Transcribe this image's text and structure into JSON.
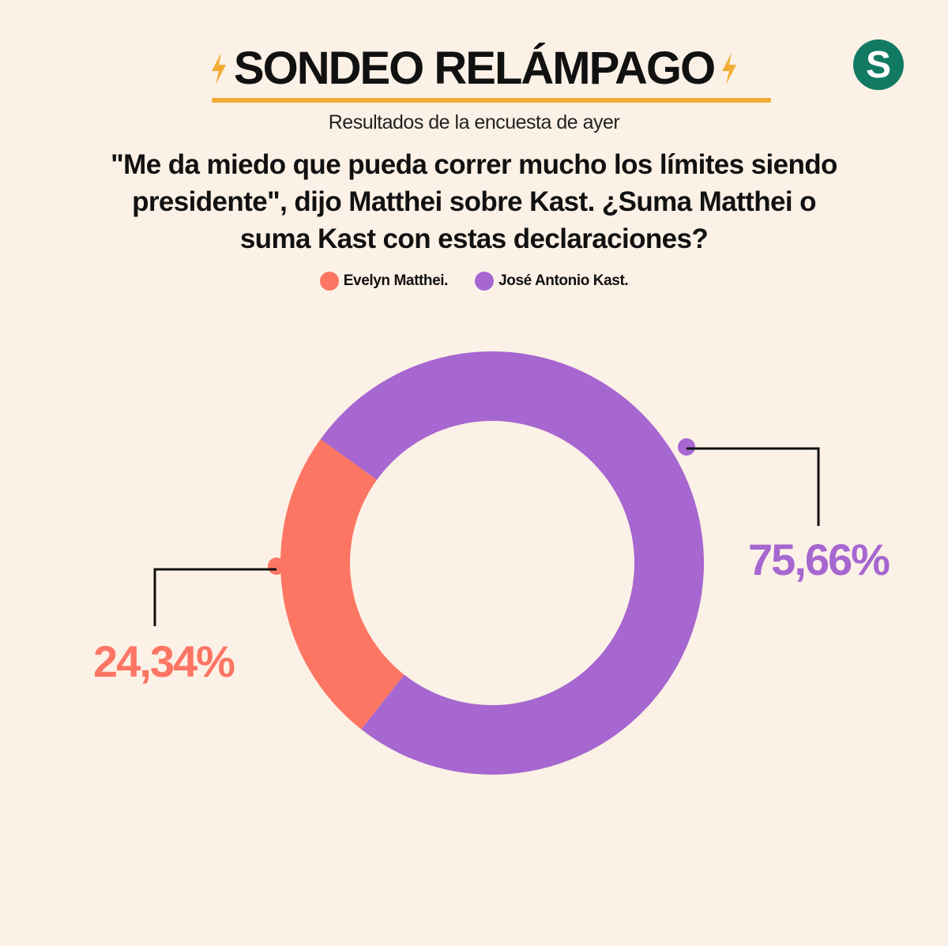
{
  "header": {
    "title": "SONDEO RELÁMPAGO",
    "bolt_color": "#f3ac33",
    "logo_letter": "S",
    "logo_color": "#127a63"
  },
  "subtitle": "Resultados de la encuesta de ayer",
  "question": "\"Me da miedo que pueda correr mucho los límites siendo presidente\", dijo Matthei sobre Kast. ¿Suma Matthei o suma Kast con estas declaraciones?",
  "legend": [
    {
      "label": "Evelyn Matthei.",
      "color": "#fd7563"
    },
    {
      "label": "José Antonio Kast.",
      "color": "#a667d0"
    }
  ],
  "chart_data": {
    "type": "pie",
    "variant": "donut",
    "categories": [
      "Evelyn Matthei.",
      "José Antonio Kast."
    ],
    "values": [
      24.34,
      75.66
    ],
    "data_labels": [
      "24,34%",
      "75,66%"
    ],
    "colors": [
      "#fd7563",
      "#a667d0"
    ],
    "title": "SONDEO RELÁMPAGO"
  }
}
